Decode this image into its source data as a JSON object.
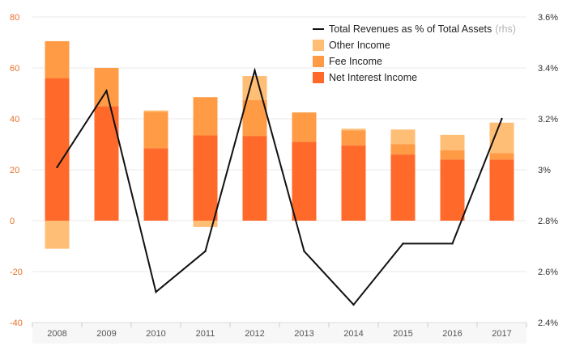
{
  "chart_data": {
    "type": "bar",
    "stacked": true,
    "categories": [
      "2008",
      "2009",
      "2010",
      "2011",
      "2012",
      "2013",
      "2014",
      "2015",
      "2016",
      "2017"
    ],
    "series": [
      {
        "name": "Net Interest Income",
        "axis": "left",
        "color": "#ff6a2b",
        "values": [
          56,
          45,
          28.5,
          33.5,
          33.3,
          31,
          29.5,
          26,
          24,
          24
        ]
      },
      {
        "name": "Fee Income",
        "axis": "left",
        "color": "#ff9b45",
        "values": [
          14.5,
          15,
          14.2,
          15,
          14,
          11.5,
          6,
          4,
          3.7,
          2.5
        ]
      },
      {
        "name": "Other Income",
        "axis": "left",
        "color": "#ffbe75",
        "values": [
          -11,
          0,
          0.6,
          -2.5,
          9.5,
          0,
          0.6,
          5.8,
          6,
          12
        ]
      },
      {
        "name": "Total Revenues as % of Total Assets",
        "axis": "right",
        "type": "line",
        "color": "#111111",
        "values": [
          3.01,
          3.31,
          2.52,
          2.68,
          3.39,
          2.68,
          2.47,
          2.71,
          2.71,
          3.2
        ]
      }
    ],
    "legend": [
      {
        "label": "Total Revenues as % of Total Assets",
        "suffix": "(rhs)",
        "kind": "line",
        "color": "#111111"
      },
      {
        "label": "Other Income",
        "kind": "box",
        "color": "#ffbe75"
      },
      {
        "label": "Fee Income",
        "kind": "box",
        "color": "#ff9b45"
      },
      {
        "label": "Net Interest Income",
        "kind": "box",
        "color": "#ff6a2b"
      }
    ],
    "ylim": [
      -40,
      80
    ],
    "y_ticks": [
      "80",
      "60",
      "40",
      "20",
      "0",
      "-20",
      "-40"
    ],
    "y2lim": [
      2.4,
      3.6
    ],
    "y2_ticks": [
      "3.6%",
      "3.4%",
      "3.2%",
      "3%",
      "2.8%",
      "2.6%",
      "2.4%"
    ],
    "legend_position": "top-right",
    "title": "",
    "xlabel": "",
    "ylabel": ""
  }
}
